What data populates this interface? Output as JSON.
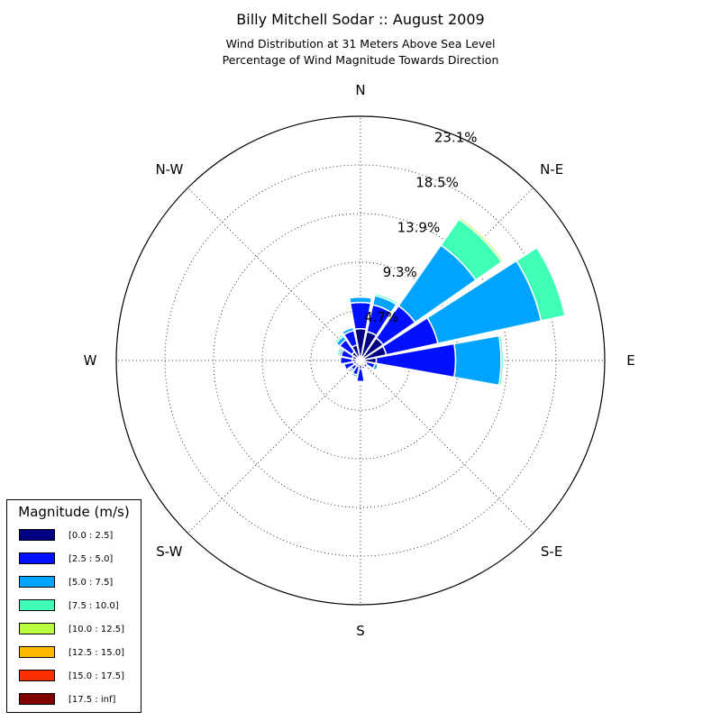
{
  "title": "Billy Mitchell Sodar :: August 2009",
  "subtitle_line1": "Wind Distribution at 31 Meters Above Sea Level",
  "subtitle_line2": "Percentage of Wind Magnitude Towards Direction",
  "legend": {
    "title": "Magnitude (m/s)",
    "items": [
      {
        "label": "[0.0 : 2.5]",
        "color": "#000080"
      },
      {
        "label": "[2.5 : 5.0]",
        "color": "#0010ff"
      },
      {
        "label": "[5.0 : 7.5]",
        "color": "#00a4ff"
      },
      {
        "label": "[7.5 : 10.0]",
        "color": "#40ffb7"
      },
      {
        "label": "[10.0 : 12.5]",
        "color": "#b7ff40"
      },
      {
        "label": "[12.5 : 15.0]",
        "color": "#ffb900"
      },
      {
        "label": "[15.0 : 17.5]",
        "color": "#ff3000"
      },
      {
        "label": "[17.5 : inf]",
        "color": "#800000"
      }
    ]
  },
  "chart_data": {
    "type": "windrose",
    "title": "Billy Mitchell Sodar :: August 2009",
    "direction_labels": [
      "N",
      "N-E",
      "E",
      "S-E",
      "S",
      "S-W",
      "W",
      "N-W"
    ],
    "radial_ticks": [
      4.7,
      9.3,
      13.9,
      18.5,
      23.1
    ],
    "radial_tick_labels": [
      "4.7%",
      "9.3%",
      "13.9%",
      "18.5%",
      "23.1%"
    ],
    "rmax": 23.1,
    "sector_width_deg": 22.5,
    "directions_deg": [
      0,
      22.5,
      45,
      67.5,
      90,
      112.5,
      135,
      157.5,
      180,
      202.5,
      225,
      247.5,
      270,
      292.5,
      315,
      337.5
    ],
    "series": [
      {
        "name": "[0.0 : 2.5]",
        "values": [
          3.0,
          2.8,
          2.6,
          2.5,
          1.5,
          0.6,
          0.5,
          0.6,
          0.8,
          0.6,
          0.6,
          0.7,
          0.8,
          0.8,
          1.0,
          1.5
        ]
      },
      {
        "name": "[2.5 : 5.0]",
        "values": [
          2.5,
          2.6,
          3.7,
          5.0,
          7.5,
          0.8,
          0.3,
          0.2,
          1.2,
          0.8,
          0.5,
          0.9,
          1.1,
          1.1,
          1.4,
          1.4
        ]
      },
      {
        "name": "[5.0 : 7.5]",
        "values": [
          0.5,
          0.9,
          7.0,
          10.0,
          4.3,
          0.3,
          0.0,
          0.0,
          0.1,
          0.2,
          0.2,
          0.1,
          0.1,
          0.2,
          0.4,
          0.3
        ]
      },
      {
        "name": "[7.5 : 10.0]",
        "values": [
          0.0,
          0.2,
          3.0,
          2.3,
          0.2,
          0.0,
          0.0,
          0.0,
          0.0,
          0.0,
          0.0,
          0.0,
          0.0,
          0.2,
          0.2,
          0.0
        ]
      },
      {
        "name": "[10.0 : 12.5]",
        "values": [
          0.0,
          0.0,
          0.2,
          0.0,
          0.0,
          0.0,
          0.0,
          0.0,
          0.0,
          0.0,
          0.0,
          0.0,
          0.0,
          0.0,
          0.0,
          0.0
        ]
      },
      {
        "name": "[12.5 : 15.0]",
        "values": [
          0.0,
          0.0,
          0.1,
          0.0,
          0.0,
          0.0,
          0.0,
          0.0,
          0.0,
          0.0,
          0.0,
          0.0,
          0.0,
          0.0,
          0.0,
          0.0
        ]
      },
      {
        "name": "[15.0 : 17.5]",
        "values": [
          0,
          0,
          0,
          0,
          0,
          0,
          0,
          0,
          0,
          0,
          0,
          0,
          0,
          0,
          0,
          0
        ]
      },
      {
        "name": "[17.5 : inf]",
        "values": [
          0,
          0,
          0,
          0,
          0,
          0,
          0,
          0,
          0,
          0,
          0,
          0,
          0,
          0,
          0,
          0
        ]
      }
    ],
    "grid": true,
    "legend_position": "bottom-left"
  }
}
